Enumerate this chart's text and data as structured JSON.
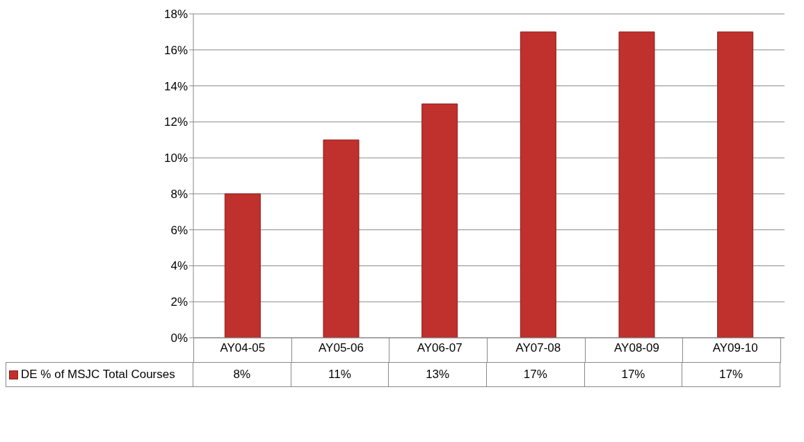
{
  "chart_data": {
    "type": "bar",
    "categories": [
      "AY04-05",
      "AY05-06",
      "AY06-07",
      "AY07-08",
      "AY08-09",
      "AY09-10"
    ],
    "series": [
      {
        "name": "DE % of MSJC Total Courses",
        "color": "#c0302c",
        "values": [
          8,
          11,
          13,
          17,
          17,
          17
        ],
        "value_labels": [
          "8%",
          "11%",
          "13%",
          "17%",
          "17%",
          "17%"
        ]
      }
    ],
    "ylim": [
      0,
      18
    ],
    "yticks": [
      {
        "value": 0,
        "label": "0%"
      },
      {
        "value": 2,
        "label": "2%"
      },
      {
        "value": 4,
        "label": "4%"
      },
      {
        "value": 6,
        "label": "6%"
      },
      {
        "value": 8,
        "label": "8%"
      },
      {
        "value": 10,
        "label": "10%"
      },
      {
        "value": 12,
        "label": "12%"
      },
      {
        "value": 14,
        "label": "14%"
      },
      {
        "value": 16,
        "label": "16%"
      },
      {
        "value": 18,
        "label": "18%"
      }
    ],
    "grid": "y",
    "legend": "bottom"
  }
}
